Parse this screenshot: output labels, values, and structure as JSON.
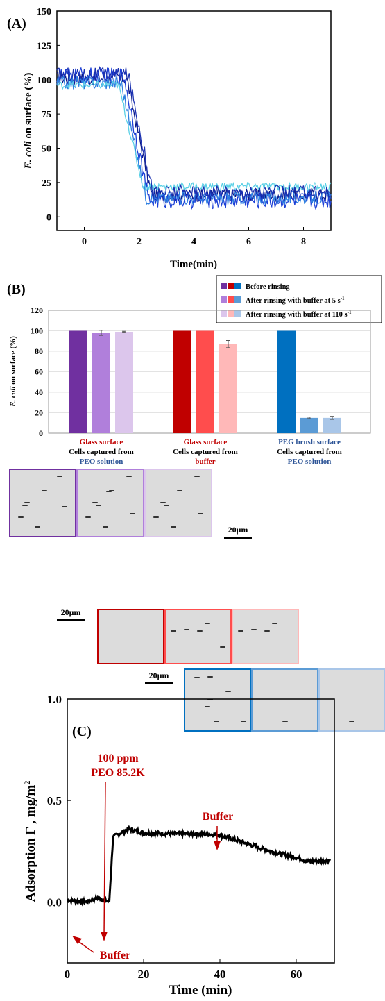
{
  "panelA": {
    "label": "(A)",
    "chart_data": {
      "type": "line",
      "ylabel_italic": "E. coli",
      "ylabel_rest": " on surface (%)",
      "xlabel": "Time(min)",
      "xlim": [
        -1,
        9
      ],
      "ylim": [
        -10,
        150
      ],
      "xticks": [
        0,
        2,
        4,
        6,
        8
      ],
      "yticks": [
        0,
        25,
        50,
        75,
        100,
        125,
        150
      ],
      "series": [
        {
          "color": "#0b1a8a",
          "start": 101,
          "end": 16,
          "t_drop": 1.55,
          "noise": 5
        },
        {
          "color": "#1c3fd6",
          "start": 103,
          "end": 12,
          "t_drop": 1.45,
          "noise": 6
        },
        {
          "color": "#2d7fe0",
          "start": 98,
          "end": 14,
          "t_drop": 1.35,
          "noise": 5
        },
        {
          "color": "#5ad0e6",
          "start": 96,
          "end": 22,
          "t_drop": 1.25,
          "noise": 3
        },
        {
          "color": "#1a30b0",
          "start": 104,
          "end": 18,
          "t_drop": 1.6,
          "noise": 5
        }
      ]
    }
  },
  "panelB": {
    "label": "(B)",
    "legend": [
      {
        "text": "Before rinsing",
        "sup": "",
        "colors": [
          "#7030a0",
          "#c00000",
          "#0070c0"
        ]
      },
      {
        "text": "After rinsing with buffer at 5 s",
        "sup": "-1",
        "colors": [
          "#b07fdb",
          "#ff4d4d",
          "#5b9bd5"
        ]
      },
      {
        "text": "After rinsing with buffer at 110 s",
        "sup": "-1",
        "colors": [
          "#dcc6ec",
          "#ffb8b8",
          "#a9c6e8"
        ]
      }
    ],
    "chart_data": {
      "type": "bar",
      "ylabel_italic": "E. coli",
      "ylabel_rest": " on surface (%)",
      "ylim": [
        0,
        120
      ],
      "yticks": [
        0,
        20,
        40,
        60,
        80,
        100,
        120
      ],
      "groups": [
        {
          "line1": "Glass surface",
          "line1_color": "#c00000",
          "line2": "Cells captured from",
          "line3": "PEO solution",
          "line3_color": "#2e5597",
          "values": [
            100,
            98,
            99
          ],
          "errors": [
            0,
            2.5,
            0.5
          ],
          "colors": [
            "#7030a0",
            "#b07fdb",
            "#dcc6ec"
          ]
        },
        {
          "line1": "Glass surface",
          "line1_color": "#c00000",
          "line2": "Cells captured from",
          "line3": "buffer",
          "line3_color": "#c00000",
          "values": [
            100,
            100,
            87
          ],
          "errors": [
            0,
            0,
            3.5
          ],
          "colors": [
            "#c00000",
            "#ff4d4d",
            "#ffb8b8"
          ]
        },
        {
          "line1": "PEG brush surface",
          "line1_color": "#2e5597",
          "line2": "Cells captured from",
          "line3": "PEO solution",
          "line3_color": "#2e5597",
          "values": [
            100,
            15,
            15
          ],
          "errors": [
            0,
            0.7,
            1.5
          ],
          "colors": [
            "#0070c0",
            "#5b9bd5",
            "#a9c6e8"
          ]
        }
      ]
    },
    "scalebars": [
      "20μm",
      "20μm",
      "20μm"
    ]
  },
  "panelC": {
    "label": "(C)",
    "chart_data": {
      "type": "line",
      "ylabel": "Adsorption Γ , mg/m",
      "ylabel_sup": "2",
      "xlabel": "Time (min)",
      "xlim": [
        0,
        70
      ],
      "ylim": [
        -0.3,
        1.0
      ],
      "xticks": [
        0,
        20,
        40,
        60
      ],
      "yticks": [
        0.0,
        0.5,
        1.0
      ],
      "ytick_labels": [
        "0.0",
        "0.5",
        "1.0"
      ],
      "points": [
        [
          0,
          0.01
        ],
        [
          5,
          0.0
        ],
        [
          8,
          0.02
        ],
        [
          11,
          0.0
        ],
        [
          12,
          0.32
        ],
        [
          14,
          0.34
        ],
        [
          16,
          0.36
        ],
        [
          20,
          0.34
        ],
        [
          30,
          0.335
        ],
        [
          36,
          0.335
        ],
        [
          40,
          0.33
        ],
        [
          45,
          0.3
        ],
        [
          50,
          0.27
        ],
        [
          55,
          0.24
        ],
        [
          60,
          0.22
        ],
        [
          63,
          0.2
        ],
        [
          69,
          0.205
        ]
      ],
      "annotations": [
        {
          "line1": "100 ppm",
          "line2": "PEO 85.2K"
        },
        {
          "line1": "Buffer",
          "line2": ""
        },
        {
          "line1": "Buffer",
          "line2": ""
        }
      ]
    }
  },
  "colors": {
    "annotation": "#c00000"
  }
}
